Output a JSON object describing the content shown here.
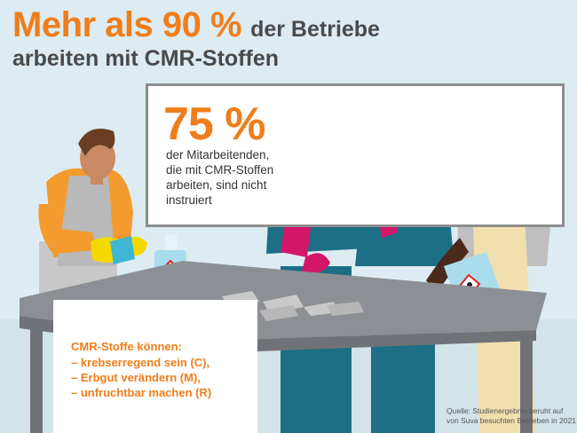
{
  "headline": {
    "big": "Mehr als 90 %",
    "small": "der Betriebe",
    "line2": "arbeiten mit CMR-Stoffen"
  },
  "stat": {
    "value": "75 %",
    "lines": [
      "der Mitarbeitenden,",
      "die mit CMR-Stoffen",
      "arbeiten, sind nicht",
      "instruiert"
    ]
  },
  "cmr": {
    "title": "CMR-Stoffe können:",
    "items": [
      "–  krebserregend sein (C),",
      "–  Erbgut verändern (M),",
      "–  unfruchtbar machen (R)"
    ]
  },
  "source": {
    "lines": [
      "Quelle: Studienergebnis beruht auf",
      "von Suva besuchten Betrieben in 2021"
    ]
  },
  "colors": {
    "accent": "#f07d1a",
    "text": "#4a4a4a",
    "overall_blue": "#1d6f85",
    "glove_magenta": "#d4166b",
    "glove_yellow": "#f3d900"
  }
}
